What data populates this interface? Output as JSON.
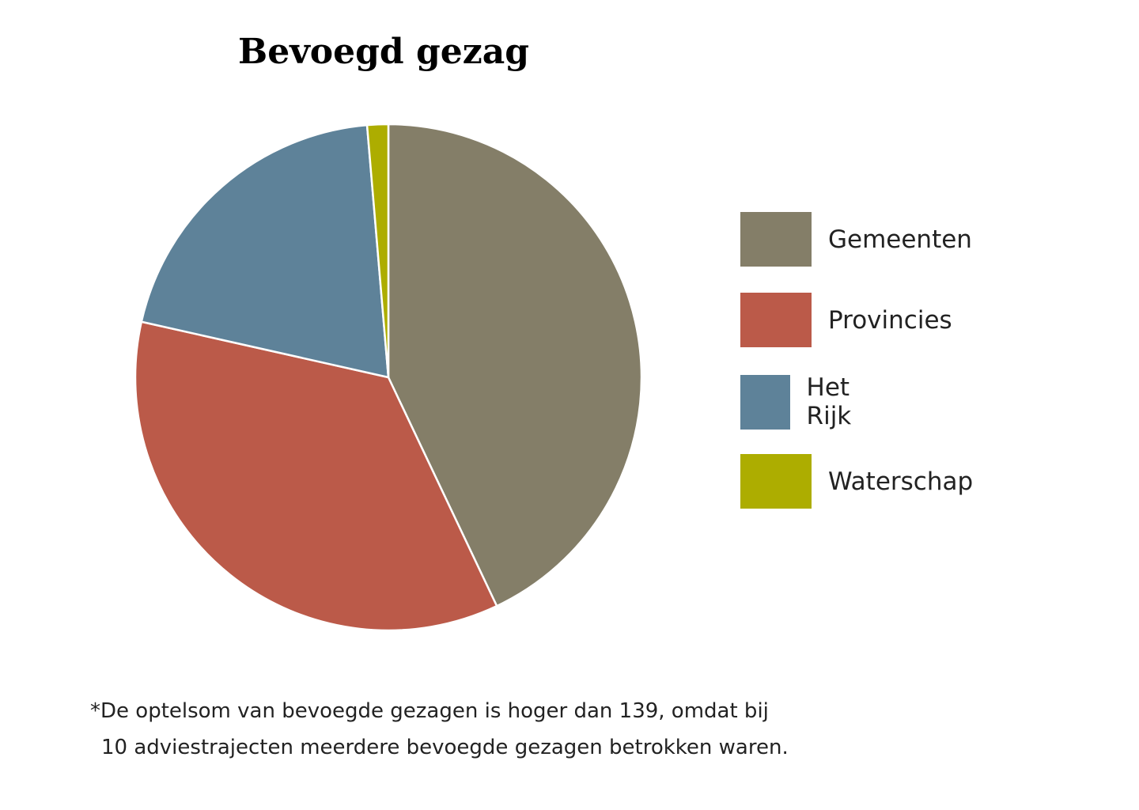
{
  "chart_data": {
    "type": "pie",
    "title": "Bevoegd gezag",
    "slices": [
      {
        "label": "Gemeenten",
        "value": 64,
        "color": "#847E68"
      },
      {
        "label": "Provincies",
        "value": 53,
        "color": "#BB5A49"
      },
      {
        "label": "Het Rijk",
        "value": 30,
        "color": "#5E8299"
      },
      {
        "label": "Waterschap",
        "value": 2,
        "color": "#ADAD00"
      }
    ],
    "start_angle": "top, clockwise",
    "legend": "right"
  },
  "footnote": {
    "line1": "*De optelsom van bevoegde gezagen is hoger dan 139, omdat bij",
    "line2": "10 adviestrajecten meerdere bevoegde gezagen betrokken waren."
  }
}
